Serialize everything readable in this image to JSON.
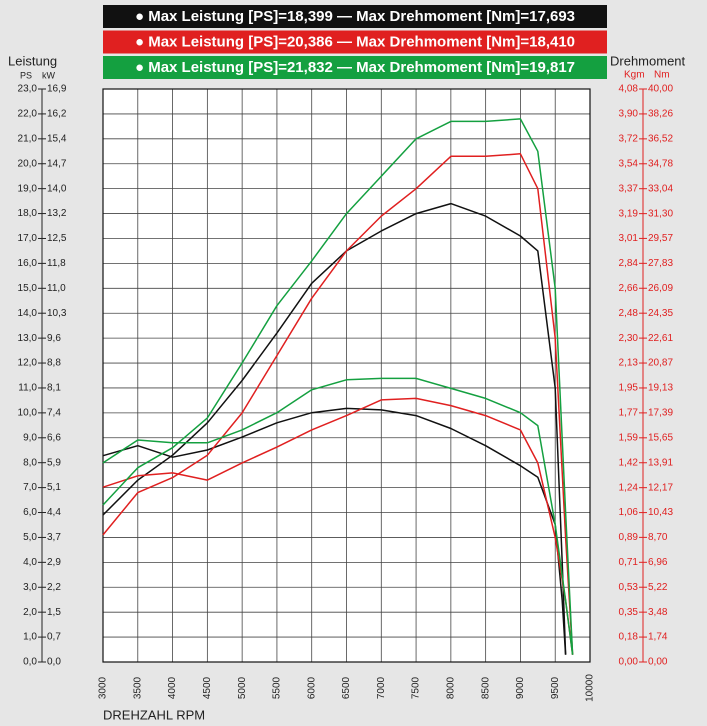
{
  "chart_data": {
    "type": "line",
    "x_title": "DREHZAHL RPM",
    "y_title": "Leistung",
    "y_unit": "PS",
    "y_unit_kw": "kW",
    "y2_title": "Drehmoment",
    "y2_unit_kgm": "Kgm",
    "y2_unit": "Nm",
    "legend": [
      {
        "label": "● Max Leistung [PS]=18,399 — Max Drehmoment [Nm]=17,693",
        "color": "#111111"
      },
      {
        "label": "● Max Leistung [PS]=20,386 — Max Drehmoment [Nm]=18,410",
        "color": "#e02020"
      },
      {
        "label": "● Max Leistung [PS]=21,832 — Max Drehmoment [Nm]=19,817",
        "color": "#14a040"
      }
    ],
    "xlim": [
      3000,
      10000
    ],
    "xticks": [
      3000,
      3500,
      4000,
      4500,
      5000,
      5500,
      6000,
      6500,
      7000,
      7500,
      8000,
      8500,
      9000,
      9500,
      10000
    ],
    "ylim": [
      0,
      23
    ],
    "yticks": [
      {
        "value": 0,
        "label": "0,0"
      },
      {
        "value": 1,
        "label": "1,0"
      },
      {
        "value": 2,
        "label": "2,0"
      },
      {
        "value": 3,
        "label": "3,0"
      },
      {
        "value": 4,
        "label": "4,0"
      },
      {
        "value": 5,
        "label": "5,0"
      },
      {
        "value": 6,
        "label": "6,0"
      },
      {
        "value": 7,
        "label": "7,0"
      },
      {
        "value": 8,
        "label": "8,0"
      },
      {
        "value": 9,
        "label": "9,0"
      },
      {
        "value": 10,
        "label": "10,0"
      },
      {
        "value": 11,
        "label": "11,0"
      },
      {
        "value": 12,
        "label": "12,0"
      },
      {
        "value": 13,
        "label": "13,0"
      },
      {
        "value": 14,
        "label": "14,0"
      },
      {
        "value": 15,
        "label": "15,0"
      },
      {
        "value": 16,
        "label": "16,0"
      },
      {
        "value": 17,
        "label": "17,0"
      },
      {
        "value": 18,
        "label": "18,0"
      },
      {
        "value": 19,
        "label": "19,0"
      },
      {
        "value": 20,
        "label": "20,0"
      },
      {
        "value": 21,
        "label": "21,0"
      },
      {
        "value": 22,
        "label": "22,0"
      },
      {
        "value": 23,
        "label": "23,0"
      }
    ],
    "yticks_kw": [
      "0,0",
      "0,7",
      "1,5",
      "2,2",
      "2,9",
      "3,7",
      "4,4",
      "5,1",
      "5,9",
      "6,6",
      "7,4",
      "8,1",
      "8,8",
      "9,6",
      "10,3",
      "11,0",
      "11,8",
      "12,5",
      "13,2",
      "14,0",
      "14,7",
      "15,4",
      "16,2",
      "16,9"
    ],
    "y2lim": [
      0,
      40
    ],
    "y2ticks": [
      {
        "value": 0,
        "label": "0,00"
      },
      {
        "value": 1.74,
        "label": "1,74"
      },
      {
        "value": 3.48,
        "label": "3,48"
      },
      {
        "value": 5.22,
        "label": "5,22"
      },
      {
        "value": 6.96,
        "label": "6,96"
      },
      {
        "value": 8.7,
        "label": "8,70"
      },
      {
        "value": 10.43,
        "label": "10,43"
      },
      {
        "value": 12.17,
        "label": "12,17"
      },
      {
        "value": 13.91,
        "label": "13,91"
      },
      {
        "value": 15.65,
        "label": "15,65"
      },
      {
        "value": 17.39,
        "label": "17,39"
      },
      {
        "value": 19.13,
        "label": "19,13"
      },
      {
        "value": 20.87,
        "label": "20,87"
      },
      {
        "value": 22.61,
        "label": "22,61"
      },
      {
        "value": 24.35,
        "label": "24,35"
      },
      {
        "value": 26.09,
        "label": "26,09"
      },
      {
        "value": 27.83,
        "label": "27,83"
      },
      {
        "value": 29.57,
        "label": "29,57"
      },
      {
        "value": 31.3,
        "label": "31,30"
      },
      {
        "value": 33.04,
        "label": "33,04"
      },
      {
        "value": 34.78,
        "label": "34,78"
      },
      {
        "value": 36.52,
        "label": "36,52"
      },
      {
        "value": 38.26,
        "label": "38,26"
      },
      {
        "value": 40,
        "label": "40,00"
      }
    ],
    "y2ticks_kgm": [
      "0,00",
      "0,18",
      "0,35",
      "0,53",
      "0,71",
      "0,89",
      "1,06",
      "1,24",
      "1,42",
      "1,59",
      "1,77",
      "1,95",
      "2,13",
      "2,30",
      "2,48",
      "2,66",
      "2,84",
      "3,01",
      "3,19",
      "3,37",
      "3,54",
      "3,72",
      "3,90",
      "4,08"
    ],
    "grid": true,
    "series": [
      {
        "color": "#111111",
        "x": [
          3000,
          3500,
          4000,
          4500,
          5000,
          5500,
          6000,
          6500,
          7000,
          7500,
          8000,
          8500,
          9000,
          9250,
          9500,
          9600,
          9650
        ],
        "values": [
          5.9,
          7.3,
          8.3,
          9.6,
          11.3,
          13.2,
          15.2,
          16.5,
          17.3,
          18.0,
          18.4,
          17.9,
          17.1,
          16.5,
          11.0,
          4.0,
          0.3
        ]
      },
      {
        "color": "#111111",
        "axis": "y2",
        "x": [
          3000,
          3500,
          4000,
          4500,
          5000,
          5500,
          6000,
          6500,
          7000,
          7500,
          8000,
          8500,
          9000,
          9250,
          9500,
          9600,
          9650
        ],
        "values": [
          14.4,
          15.1,
          14.3,
          14.8,
          15.7,
          16.7,
          17.4,
          17.7,
          17.6,
          17.2,
          16.3,
          15.1,
          13.7,
          12.9,
          9.6,
          4.3,
          0.5
        ]
      },
      {
        "color": "#e02020",
        "x": [
          3000,
          3500,
          4000,
          4500,
          5000,
          5500,
          6000,
          6500,
          7000,
          7500,
          8000,
          8500,
          9000,
          9250,
          9500,
          9650,
          9750
        ],
        "values": [
          5.1,
          6.8,
          7.4,
          8.3,
          10.0,
          12.3,
          14.6,
          16.5,
          17.9,
          19.0,
          20.3,
          20.3,
          20.4,
          19.0,
          13.0,
          5.0,
          0.3
        ]
      },
      {
        "color": "#e02020",
        "axis": "y2",
        "x": [
          3000,
          3500,
          4000,
          4500,
          5000,
          5500,
          6000,
          6500,
          7000,
          7500,
          8000,
          8500,
          9000,
          9250,
          9500,
          9650,
          9750
        ],
        "values": [
          12.2,
          13.0,
          13.2,
          12.7,
          13.9,
          15.0,
          16.2,
          17.2,
          18.3,
          18.4,
          17.9,
          17.2,
          16.2,
          13.9,
          8.7,
          4.3,
          0.5
        ]
      },
      {
        "color": "#14a040",
        "x": [
          3000,
          3500,
          4000,
          4500,
          5000,
          5500,
          6000,
          6500,
          7000,
          7500,
          8000,
          8500,
          9000,
          9250,
          9500,
          9650,
          9750
        ],
        "values": [
          6.3,
          7.8,
          8.6,
          9.8,
          12.0,
          14.3,
          16.1,
          18.0,
          19.5,
          21.0,
          21.7,
          21.7,
          21.8,
          20.5,
          15.0,
          6.0,
          0.3
        ]
      },
      {
        "color": "#14a040",
        "axis": "y2",
        "x": [
          3000,
          3500,
          4000,
          4500,
          5000,
          5500,
          6000,
          6500,
          7000,
          7500,
          8000,
          8500,
          9000,
          9250,
          9500,
          9650,
          9750
        ],
        "values": [
          13.9,
          15.5,
          15.3,
          15.3,
          16.2,
          17.4,
          19.0,
          19.7,
          19.8,
          19.8,
          19.1,
          18.4,
          17.4,
          16.5,
          9.6,
          4.3,
          0.5
        ]
      }
    ]
  }
}
